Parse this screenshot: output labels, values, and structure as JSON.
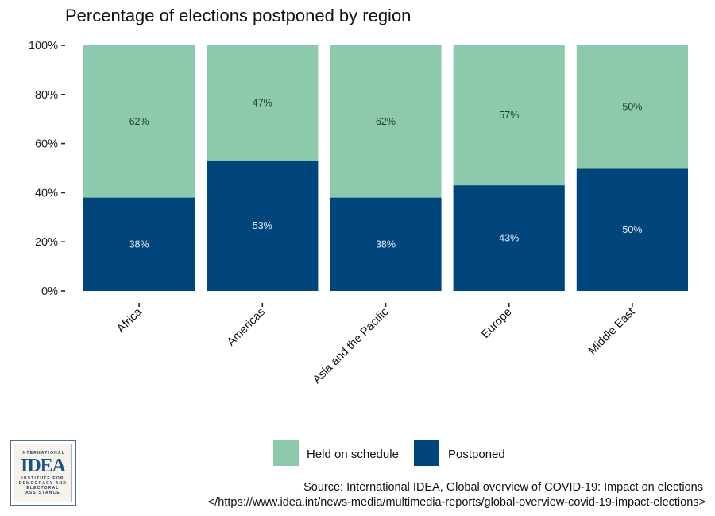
{
  "chart_data": {
    "type": "bar",
    "stacked": true,
    "title": "Percentage of elections postponed by region",
    "xlabel": "",
    "ylabel": "",
    "ylim": [
      0,
      100
    ],
    "yticks": [
      "0%",
      "20%",
      "40%",
      "60%",
      "80%",
      "100%"
    ],
    "ytick_values": [
      0,
      20,
      40,
      60,
      80,
      100
    ],
    "grid": false,
    "categories": [
      "Africa",
      "Americas",
      "Asia and the Pacific",
      "Europe",
      "Middle East"
    ],
    "series": [
      {
        "name": "Postponed",
        "color": "#00457c",
        "label_color": "#e6eef7",
        "values": [
          38,
          53,
          38,
          43,
          50
        ],
        "labels": [
          "38%",
          "53%",
          "38%",
          "43%",
          "50%"
        ]
      },
      {
        "name": "Held on schedule",
        "color": "#8dcaad",
        "label_color": "#1e3d2c",
        "values": [
          62,
          47,
          62,
          57,
          50
        ],
        "labels": [
          "62%",
          "47%",
          "62%",
          "57%",
          "50%"
        ]
      }
    ],
    "legend": {
      "position": "bottom",
      "entries": [
        {
          "label": "Held on schedule",
          "color": "#8dcaad"
        },
        {
          "label": "Postponed",
          "color": "#00457c"
        }
      ]
    }
  },
  "source": {
    "line1": "Source: International IDEA, Global overview of COVID-19: Impact on elections",
    "line2": "</https://www.idea.int/news-media/multimedia-reports/global-overview-covid-19-impact-elections>"
  },
  "logo": {
    "top_text": "INTERNATIONAL",
    "main_text": "IDEA",
    "lines": [
      "INSTITUTE FOR",
      "DEMOCRACY AND",
      "ELECTORAL",
      "ASSISTANCE"
    ]
  }
}
